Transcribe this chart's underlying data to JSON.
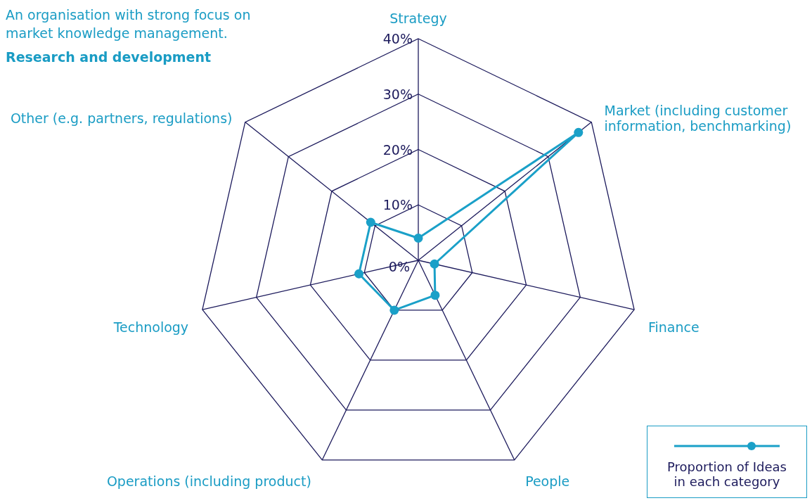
{
  "chart_data": {
    "type": "radar",
    "title": "Research and development",
    "subtitle": "An organisation with strong focus on market knowledge management.",
    "categories": [
      "Strategy",
      "Market (including customer information, benchmarking)",
      "Finance",
      "People",
      "Operations (including product)",
      "Technology",
      "Other (e.g. partners, regulations)"
    ],
    "series": [
      {
        "name": "Proportion of Ideas in each category",
        "color": "#1aa0c8",
        "values": [
          4,
          37,
          3,
          7,
          10,
          11,
          11
        ]
      }
    ],
    "ylim": [
      0,
      40
    ],
    "yticks": [
      {
        "value": 0,
        "label": "0%"
      },
      {
        "value": 10,
        "label": "10%"
      },
      {
        "value": 20,
        "label": "20%"
      },
      {
        "value": 30,
        "label": "30%"
      },
      {
        "value": 40,
        "label": "40%"
      }
    ],
    "grid": true,
    "marker": "circle",
    "legend": "bottom right"
  }
}
